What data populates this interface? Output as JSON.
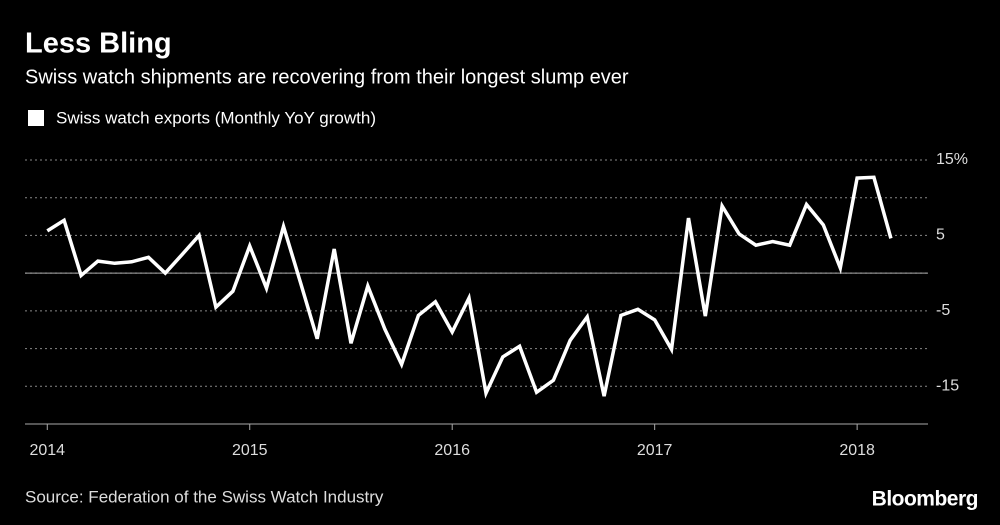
{
  "chart_data": {
    "type": "line",
    "title": "Less Bling",
    "subtitle": "Swiss watch shipments are recovering from their longest slump ever",
    "source": "Source: Federation of the Swiss Watch Industry",
    "brand": "Bloomberg",
    "x": [
      2014,
      2014.083,
      2014.167,
      2014.25,
      2014.333,
      2014.417,
      2014.5,
      2014.583,
      2014.667,
      2014.75,
      2014.833,
      2014.917,
      2015,
      2015.083,
      2015.167,
      2015.25,
      2015.333,
      2015.417,
      2015.5,
      2015.583,
      2015.667,
      2015.75,
      2015.833,
      2015.917,
      2016,
      2016.083,
      2016.167,
      2016.25,
      2016.333,
      2016.417,
      2016.5,
      2016.583,
      2016.667,
      2016.75,
      2016.833,
      2016.917,
      2017,
      2017.083,
      2017.167,
      2017.25,
      2017.333,
      2017.417,
      2017.5,
      2017.583,
      2017.667,
      2017.75,
      2017.833,
      2017.917,
      2018,
      2018.083,
      2018.167
    ],
    "series": [
      {
        "name": "Swiss watch exports (Monthly YoY growth)",
        "color": "#ffffff",
        "values": [
          5.6,
          7.0,
          -0.3,
          1.6,
          1.3,
          1.5,
          2.1,
          0,
          2.5,
          5.0,
          -4.5,
          -2.4,
          3.6,
          -2.0,
          6.2,
          -1.2,
          -8.7,
          3.2,
          -9.3,
          -1.7,
          -7.4,
          -12.1,
          -5.6,
          -3.8,
          -7.8,
          -3.3,
          -15.9,
          -11.1,
          -9.7,
          -15.8,
          -14.2,
          -8.9,
          -5.8,
          -16.3,
          -5.6,
          -4.8,
          -6.2,
          -10.1,
          7.3,
          -5.7,
          8.9,
          5.2,
          3.7,
          4.2,
          3.7,
          9.1,
          6.4,
          0.7,
          12.6,
          12.7,
          4.6
        ]
      }
    ],
    "xlim": [
      2013.89,
      2018.35
    ],
    "xticks": [
      2014,
      2015,
      2016,
      2017,
      2018
    ],
    "ylim": [
      -20,
      15
    ],
    "yticks": [
      -15,
      -5,
      5,
      {
        "value": 15,
        "label": "15%"
      }
    ],
    "grid": true
  }
}
